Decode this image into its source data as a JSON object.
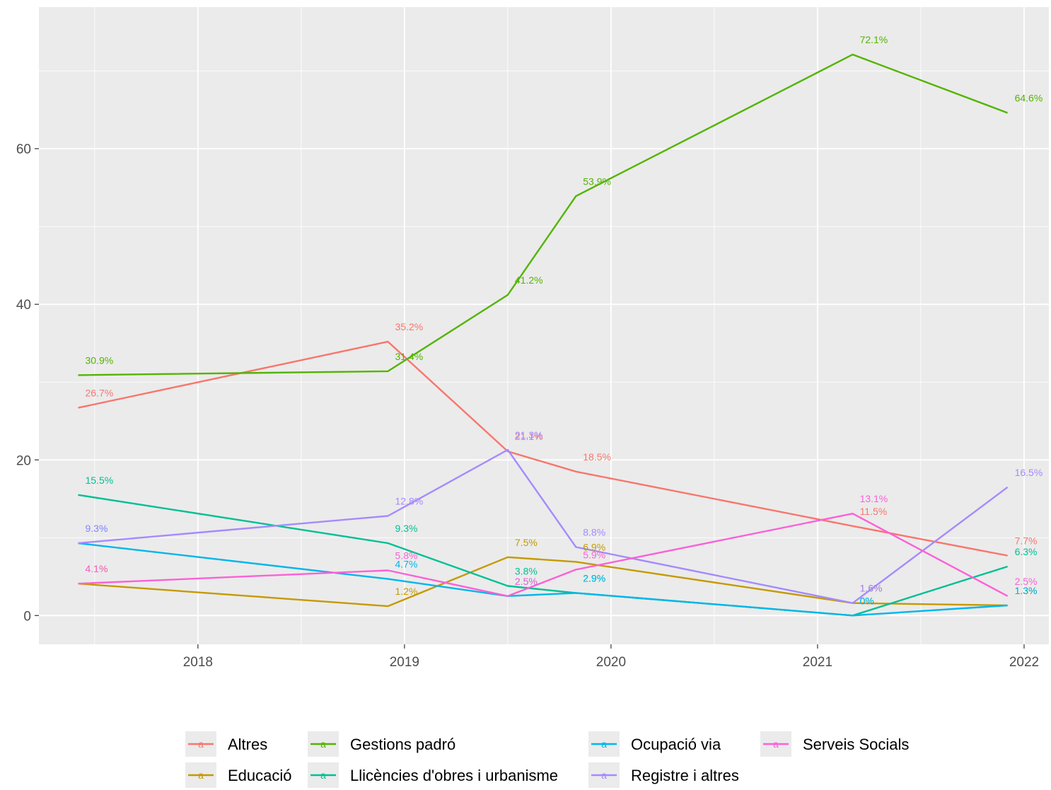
{
  "chart_data": {
    "type": "line",
    "title": "",
    "xlabel": "",
    "ylabel": "",
    "x": [
      2017.42,
      2018.92,
      2019.5,
      2019.83,
      2021.17,
      2021.92
    ],
    "xticks": [
      "2018",
      "2019",
      "2020",
      "2021",
      "2022"
    ],
    "xtick_values": [
      2018,
      2019,
      2020,
      2021,
      2022
    ],
    "yticks": [
      "0",
      "20",
      "40",
      "60"
    ],
    "ytick_values": [
      0,
      20,
      40,
      60
    ],
    "xlim": [
      2017.23,
      2022.12
    ],
    "ylim": [
      -3.7,
      78.2
    ],
    "grid": true,
    "legend_position": "bottom",
    "series": [
      {
        "name": "Altres",
        "color": "#F8766D",
        "values": [
          26.7,
          35.2,
          21.1,
          18.5,
          11.5,
          7.7
        ],
        "labels": [
          "26.7%",
          "35.2%",
          "21.1%",
          "18.5%",
          "11.5%",
          "7.7%"
        ]
      },
      {
        "name": "Educació",
        "color": "#C49A00",
        "values": [
          4.1,
          1.2,
          7.5,
          6.9,
          1.6,
          1.3
        ],
        "labels": [
          "4.1%",
          "1.2%",
          "7.5%",
          "6.9%",
          "1.6%",
          "1.3%"
        ]
      },
      {
        "name": "Gestions padró",
        "color": "#53B400",
        "values": [
          30.9,
          31.4,
          41.2,
          53.9,
          72.1,
          64.6
        ],
        "labels": [
          "30.9%",
          "31.4%",
          "41.2%",
          "53.9%",
          "72.1%",
          "64.6%"
        ]
      },
      {
        "name": "Llicències d'obres i urbanisme",
        "color": "#00C094",
        "values": [
          15.5,
          9.3,
          3.8,
          2.9,
          0,
          6.3
        ],
        "labels": [
          "15.5%",
          "9.3%",
          "3.8%",
          "2.9%",
          "0%",
          "6.3%"
        ]
      },
      {
        "name": "Ocupació via",
        "color": "#00B6EB",
        "values": [
          9.3,
          4.7,
          2.5,
          2.9,
          0,
          1.3
        ],
        "labels": [
          "9.3%",
          "4.7%",
          "2.5%",
          "2.9%",
          "0%",
          "1.3%"
        ]
      },
      {
        "name": "Registre i altres",
        "color": "#A58AFF",
        "values": [
          9.3,
          12.8,
          21.3,
          8.8,
          1.6,
          16.5
        ],
        "labels": [
          "9.3%",
          "12.8%",
          "21.3%",
          "8.8%",
          "1.6%",
          "16.5%"
        ]
      },
      {
        "name": "Serveis Socials",
        "color": "#FB61D7",
        "values": [
          4.1,
          5.8,
          2.5,
          5.9,
          13.1,
          2.5
        ],
        "labels": [
          "4.1%",
          "5.8%",
          "2.5%",
          "5.9%",
          "13.1%",
          "2.5%"
        ]
      }
    ],
    "legend_order": [
      "Altres",
      "Educació",
      "Gestions padró",
      "Llicències d'obres i urbanisme",
      "Ocupació via",
      "Registre i altres",
      "Serveis Socials"
    ]
  }
}
